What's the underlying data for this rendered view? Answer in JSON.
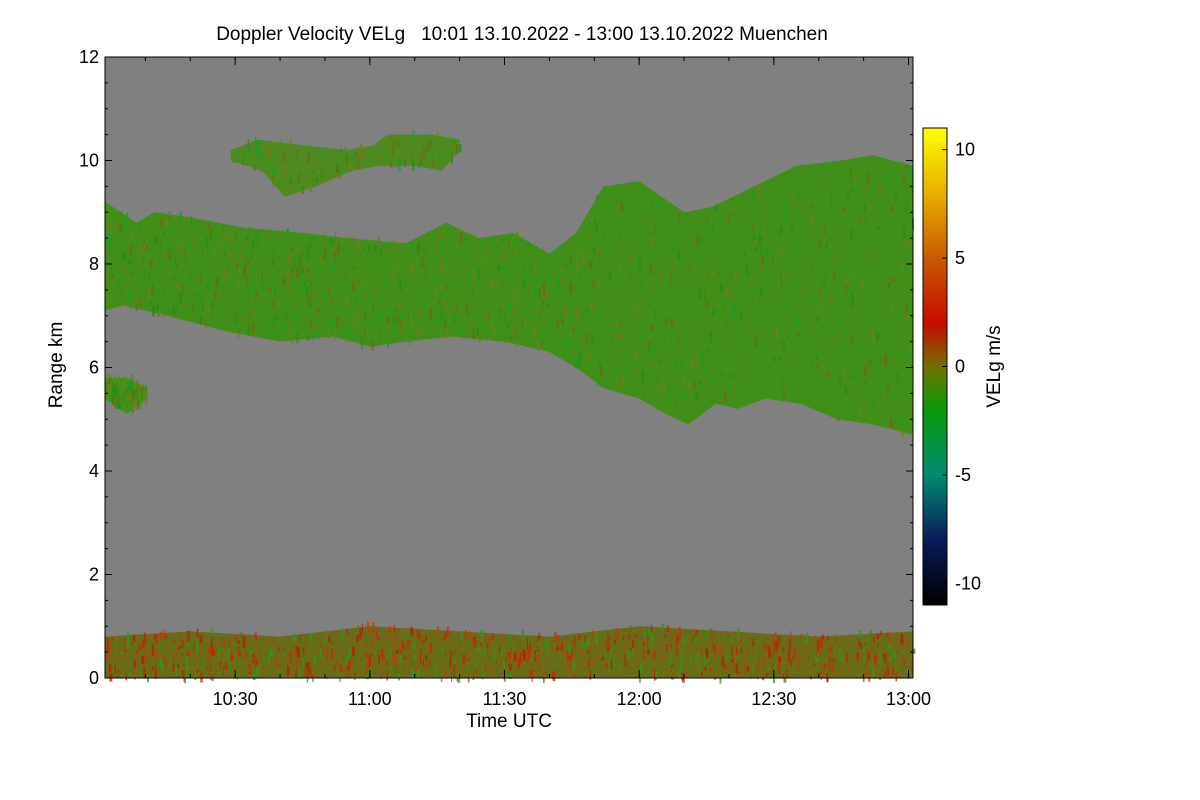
{
  "chart_data": {
    "type": "heatmap",
    "title": "Doppler Velocity VELg   10:01 13.10.2022 - 13:00 13.10.2022 Muenchen",
    "xlabel": "Time UTC",
    "ylabel": "Range km",
    "x_start_minutes": 601,
    "x_end_minutes": 780,
    "xlim_minutes": [
      601,
      781
    ],
    "ylim": [
      0,
      12
    ],
    "x_tick_values": [
      630,
      660,
      690,
      720,
      750,
      780
    ],
    "x_tick_labels": [
      "10:30",
      "11:00",
      "11:30",
      "12:00",
      "12:30",
      "13:00"
    ],
    "y_ticks": [
      0,
      2,
      4,
      6,
      8,
      10,
      12
    ],
    "background_color": "#808080",
    "colorbar": {
      "label": "VELg m/s",
      "range": [
        -11,
        11
      ],
      "ticks": [
        10,
        5,
        0,
        -5,
        -10
      ],
      "stops": [
        {
          "v": -11,
          "color": "#000000"
        },
        {
          "v": -8,
          "color": "#0a1a5a"
        },
        {
          "v": -5,
          "color": "#008c70"
        },
        {
          "v": -2,
          "color": "#0a9a0a"
        },
        {
          "v": 0,
          "color": "#707000"
        },
        {
          "v": 2,
          "color": "#c80a00"
        },
        {
          "v": 5,
          "color": "#c85a00"
        },
        {
          "v": 8,
          "color": "#e8b000"
        },
        {
          "v": 11,
          "color": "#ffff00"
        }
      ]
    },
    "layers": [
      {
        "name": "main-cloud-layer",
        "dominant_velocity": -1.5,
        "fill": "#3f8f18",
        "top_km": [
          [
            601,
            9.2
          ],
          [
            608,
            8.8
          ],
          [
            612,
            9.0
          ],
          [
            620,
            8.9
          ],
          [
            632,
            8.7
          ],
          [
            645,
            8.6
          ],
          [
            655,
            8.5
          ],
          [
            668,
            8.4
          ],
          [
            677,
            8.8
          ],
          [
            684,
            8.5
          ],
          [
            692,
            8.6
          ],
          [
            700,
            8.2
          ],
          [
            706,
            8.6
          ],
          [
            712,
            9.5
          ],
          [
            720,
            9.6
          ],
          [
            730,
            9.0
          ],
          [
            736,
            9.1
          ],
          [
            741,
            9.3
          ],
          [
            748,
            9.6
          ],
          [
            755,
            9.9
          ],
          [
            765,
            10.0
          ],
          [
            772,
            10.1
          ],
          [
            781,
            9.9
          ]
        ],
        "bottom_km": [
          [
            601,
            7.1
          ],
          [
            605,
            7.2
          ],
          [
            615,
            7.0
          ],
          [
            628,
            6.7
          ],
          [
            640,
            6.5
          ],
          [
            652,
            6.6
          ],
          [
            660,
            6.4
          ],
          [
            668,
            6.5
          ],
          [
            678,
            6.6
          ],
          [
            690,
            6.5
          ],
          [
            700,
            6.3
          ],
          [
            706,
            6.0
          ],
          [
            712,
            5.6
          ],
          [
            720,
            5.4
          ],
          [
            726,
            5.1
          ],
          [
            731,
            4.9
          ],
          [
            737,
            5.3
          ],
          [
            742,
            5.2
          ],
          [
            748,
            5.4
          ],
          [
            756,
            5.3
          ],
          [
            764,
            5.0
          ],
          [
            772,
            4.9
          ],
          [
            781,
            4.7
          ]
        ]
      },
      {
        "name": "upper-cloud-patch",
        "dominant_velocity": -1.0,
        "fill": "#4e8a20",
        "top_km": [
          [
            629,
            10.2
          ],
          [
            635,
            10.4
          ],
          [
            645,
            10.3
          ],
          [
            655,
            10.2
          ],
          [
            661,
            10.3
          ],
          [
            664,
            10.5
          ],
          [
            674,
            10.5
          ],
          [
            680,
            10.4
          ]
        ],
        "bottom_km": [
          [
            629,
            10.0
          ],
          [
            636,
            9.8
          ],
          [
            641,
            9.3
          ],
          [
            648,
            9.5
          ],
          [
            656,
            9.8
          ],
          [
            662,
            9.9
          ],
          [
            670,
            9.9
          ],
          [
            676,
            9.8
          ],
          [
            680,
            10.2
          ]
        ]
      },
      {
        "name": "small-low-patch",
        "dominant_velocity": -2.0,
        "fill": "#2f9a20",
        "top_km": [
          [
            601,
            5.8
          ],
          [
            606,
            5.8
          ],
          [
            610,
            5.6
          ]
        ],
        "bottom_km": [
          [
            601,
            5.4
          ],
          [
            606,
            5.1
          ],
          [
            610,
            5.4
          ]
        ]
      },
      {
        "name": "boundary-layer",
        "dominant_velocity": 1.5,
        "fill": "#6a6a18",
        "top_km": [
          [
            601,
            0.8
          ],
          [
            620,
            0.9
          ],
          [
            640,
            0.8
          ],
          [
            660,
            1.0
          ],
          [
            680,
            0.9
          ],
          [
            700,
            0.8
          ],
          [
            720,
            1.0
          ],
          [
            740,
            0.9
          ],
          [
            760,
            0.8
          ],
          [
            781,
            0.9
          ]
        ],
        "bottom_km": [
          [
            601,
            0.0
          ],
          [
            781,
            0.0
          ]
        ]
      }
    ]
  }
}
